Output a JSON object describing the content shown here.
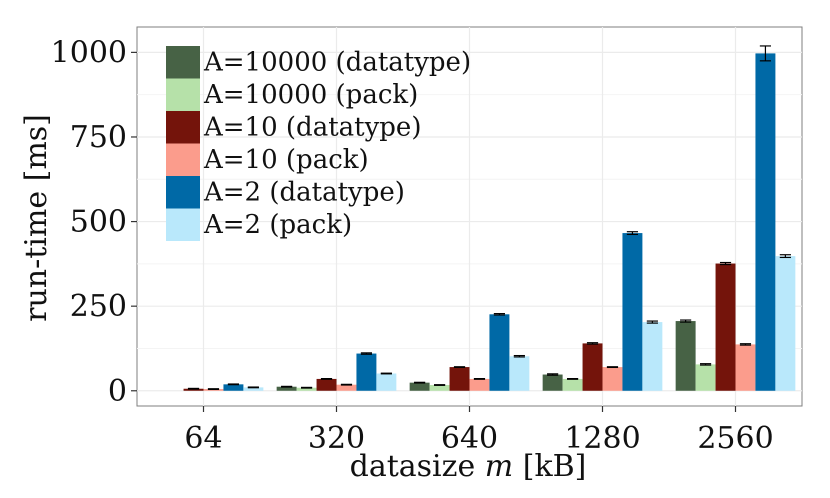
{
  "chart_data": {
    "type": "bar",
    "title": "",
    "xlabel": "datasize m [kB]",
    "xlabel_parts": {
      "prefix": "datasize ",
      "variable": "m",
      "suffix": " [kB]"
    },
    "ylabel": "run-time [ms]",
    "ylim": [
      -45,
      1075
    ],
    "yticks": [
      0,
      250,
      500,
      750,
      1000
    ],
    "grid": true,
    "legend_position": "top-left",
    "categories": [
      "64",
      "320",
      "640",
      "1280",
      "2560"
    ],
    "series": [
      {
        "name": "A=10000 (datatype)",
        "color": "#476245",
        "values": [
          null,
          12,
          24,
          48,
          206
        ],
        "errors": [
          null,
          1,
          1,
          2,
          3
        ]
      },
      {
        "name": "A=10000 (pack)",
        "color": "#b6e1a9",
        "values": [
          null,
          9,
          17,
          35,
          78
        ],
        "errors": [
          null,
          1,
          1,
          1,
          2
        ]
      },
      {
        "name": "A=10 (datatype)",
        "color": "#74140b",
        "values": [
          6,
          35,
          70,
          140,
          376
        ],
        "errors": [
          1,
          1,
          1,
          2,
          3
        ]
      },
      {
        "name": "A=10 (pack)",
        "color": "#fb9c8c",
        "values": [
          5,
          18,
          35,
          70,
          137
        ],
        "errors": [
          1,
          1,
          1,
          1,
          2
        ]
      },
      {
        "name": "A=2 (datatype)",
        "color": "#0069a6",
        "values": [
          19,
          110,
          226,
          466,
          997
        ],
        "errors": [
          1,
          2,
          2,
          4,
          22
        ]
      },
      {
        "name": "A=2 (pack)",
        "color": "#b9e8fb",
        "values": [
          10,
          51,
          102,
          203,
          398
        ],
        "errors": [
          1,
          1,
          2,
          3,
          4
        ]
      }
    ]
  }
}
